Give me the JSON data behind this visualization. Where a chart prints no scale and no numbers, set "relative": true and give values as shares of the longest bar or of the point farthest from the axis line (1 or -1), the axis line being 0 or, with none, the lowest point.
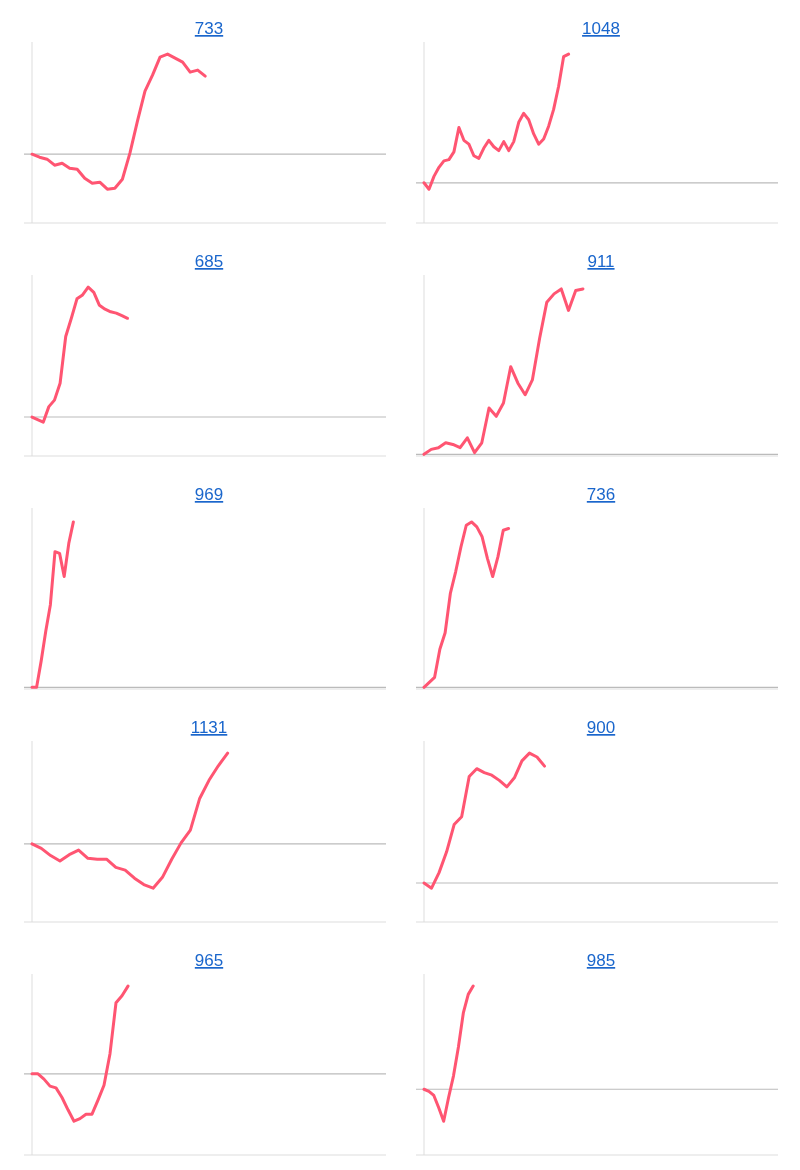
{
  "chart_data": [
    {
      "type": "line",
      "title": "733",
      "relative": true,
      "categories": [
        null,
        null,
        null,
        null,
        null,
        null,
        null,
        null,
        null,
        null,
        null,
        null,
        null,
        null,
        null,
        null,
        null,
        null,
        null,
        null,
        null,
        null,
        null,
        null,
        null,
        null,
        null,
        null,
        null,
        null,
        null,
        null,
        null,
        null,
        null,
        null,
        null,
        null,
        null,
        null,
        null,
        null,
        null,
        null,
        null,
        null,
        null,
        null
      ],
      "series": [
        {
          "color": "#ff5572",
          "values": [
            0,
            -0.03,
            -0.05,
            -0.11,
            -0.09,
            -0.14,
            -0.15,
            -0.24,
            -0.29,
            -0.28,
            -0.35,
            -0.34,
            -0.25,
            0.01,
            0.33,
            0.63,
            0.79,
            0.97,
            1,
            0.96,
            0.92,
            0.82,
            0.84,
            0.78,
            null,
            null,
            null,
            null,
            null,
            null,
            null,
            null,
            null,
            null,
            null,
            null,
            null,
            null,
            null,
            null,
            null,
            null,
            null,
            null,
            null,
            null,
            null,
            null
          ]
        }
      ]
    },
    {
      "type": "line",
      "title": "1048",
      "relative": true,
      "categories": [
        null,
        null,
        null,
        null,
        null,
        null,
        null,
        null,
        null,
        null,
        null,
        null,
        null,
        null,
        null,
        null,
        null,
        null,
        null,
        null,
        null,
        null,
        null,
        null,
        null,
        null,
        null,
        null,
        null,
        null,
        null,
        null,
        null,
        null,
        null,
        null,
        null,
        null,
        null,
        null,
        null,
        null,
        null,
        null,
        null,
        null,
        null,
        null,
        null,
        null,
        null,
        null,
        null,
        null,
        null,
        null,
        null,
        null,
        null,
        null,
        null,
        null,
        null,
        null,
        null,
        null,
        null,
        null,
        null,
        null,
        null,
        null
      ],
      "series": [
        {
          "color": "#ff5572",
          "values": [
            0,
            -0.05,
            0.05,
            0.12,
            0.17,
            0.18,
            0.24,
            0.43,
            0.33,
            0.3,
            0.21,
            0.19,
            0.27,
            0.33,
            0.28,
            0.25,
            0.32,
            0.25,
            0.32,
            0.47,
            0.54,
            0.49,
            0.38,
            0.3,
            0.34,
            0.44,
            0.57,
            0.75,
            0.98,
            1,
            null,
            null,
            null,
            null,
            null,
            null,
            null,
            null,
            null,
            null,
            null,
            null,
            null,
            null,
            null,
            null,
            null,
            null,
            null,
            null,
            null,
            null,
            null,
            null,
            null,
            null,
            null,
            null,
            null,
            null,
            null,
            null,
            null,
            null,
            null,
            null,
            null,
            null,
            null,
            null,
            null,
            null
          ]
        }
      ]
    },
    {
      "type": "line",
      "title": "685",
      "relative": true,
      "categories": [
        null,
        null,
        null,
        null,
        null,
        null,
        null,
        null,
        null,
        null,
        null,
        null,
        null,
        null,
        null,
        null,
        null,
        null,
        null,
        null,
        null,
        null,
        null,
        null,
        null,
        null,
        null,
        null,
        null,
        null,
        null,
        null,
        null,
        null,
        null,
        null,
        null,
        null,
        null,
        null,
        null,
        null,
        null,
        null,
        null,
        null,
        null,
        null,
        null,
        null,
        null,
        null,
        null,
        null,
        null,
        null,
        null,
        null,
        null,
        null,
        null,
        null,
        null,
        null
      ],
      "series": [
        {
          "color": "#ff5572",
          "values": [
            0,
            -0.02,
            -0.04,
            0.08,
            0.13,
            0.26,
            0.62,
            0.76,
            0.91,
            0.94,
            1,
            0.96,
            0.86,
            0.83,
            0.81,
            0.8,
            0.78,
            0.76,
            null,
            null,
            null,
            null,
            null,
            null,
            null,
            null,
            null,
            null,
            null,
            null,
            null,
            null,
            null,
            null,
            null,
            null,
            null,
            null,
            null,
            null,
            null,
            null,
            null,
            null,
            null,
            null,
            null,
            null,
            null,
            null,
            null,
            null,
            null,
            null,
            null,
            null,
            null,
            null,
            null,
            null,
            null,
            null,
            null,
            null
          ]
        }
      ]
    },
    {
      "type": "line",
      "title": "911",
      "relative": true,
      "categories": [
        null,
        null,
        null,
        null,
        null,
        null,
        null,
        null,
        null,
        null,
        null,
        null,
        null,
        null,
        null,
        null,
        null,
        null,
        null,
        null,
        null,
        null,
        null,
        null,
        null,
        null,
        null,
        null,
        null,
        null,
        null,
        null,
        null,
        null,
        null,
        null,
        null,
        null,
        null,
        null,
        null,
        null,
        null,
        null,
        null,
        null,
        null,
        null,
        null,
        null
      ],
      "series": [
        {
          "color": "#ff5572",
          "values": [
            0,
            0.03,
            0.04,
            0.07,
            0.06,
            0.04,
            0.1,
            0.01,
            0.07,
            0.28,
            0.23,
            0.31,
            0.53,
            0.43,
            0.36,
            0.45,
            0.7,
            0.92,
            0.97,
            1,
            0.87,
            0.99,
            1,
            null,
            null,
            null,
            null,
            null,
            null,
            null,
            null,
            null,
            null,
            null,
            null,
            null,
            null,
            null,
            null,
            null,
            null,
            null,
            null,
            null,
            null,
            null,
            null,
            null,
            null,
            null
          ]
        }
      ]
    },
    {
      "type": "line",
      "title": "969",
      "relative": true,
      "categories": [
        null,
        null,
        null,
        null,
        null,
        null,
        null,
        null,
        null,
        null,
        null,
        null,
        null,
        null,
        null,
        null,
        null,
        null,
        null,
        null,
        null,
        null,
        null,
        null,
        null,
        null,
        null,
        null,
        null,
        null,
        null,
        null,
        null,
        null,
        null,
        null,
        null,
        null,
        null,
        null,
        null,
        null,
        null,
        null,
        null,
        null,
        null,
        null,
        null,
        null,
        null,
        null,
        null,
        null,
        null,
        null,
        null,
        null,
        null,
        null,
        null,
        null,
        null,
        null,
        null,
        null,
        null,
        null,
        null,
        null,
        null,
        null,
        null,
        null,
        null,
        null,
        null,
        null
      ],
      "series": [
        {
          "color": "#ff5572",
          "values": [
            0,
            0,
            0.16,
            0.34,
            0.5,
            0.82,
            0.81,
            0.67,
            0.87,
            1,
            null,
            null,
            null,
            null,
            null,
            null,
            null,
            null,
            null,
            null,
            null,
            null,
            null,
            null,
            null,
            null,
            null,
            null,
            null,
            null,
            null,
            null,
            null,
            null,
            null,
            null,
            null,
            null,
            null,
            null,
            null,
            null,
            null,
            null,
            null,
            null,
            null,
            null,
            null,
            null,
            null,
            null,
            null,
            null,
            null,
            null,
            null,
            null,
            null,
            null,
            null,
            null,
            null,
            null,
            null,
            null,
            null,
            null,
            null,
            null,
            null,
            null,
            null,
            null,
            null,
            null,
            null,
            null
          ]
        }
      ]
    },
    {
      "type": "line",
      "title": "736",
      "relative": true,
      "categories": [
        null,
        null,
        null,
        null,
        null,
        null,
        null,
        null,
        null,
        null,
        null,
        null,
        null,
        null,
        null,
        null,
        null,
        null,
        null,
        null,
        null,
        null,
        null,
        null,
        null,
        null,
        null,
        null,
        null,
        null,
        null,
        null,
        null,
        null,
        null,
        null,
        null,
        null,
        null,
        null,
        null,
        null,
        null,
        null,
        null,
        null,
        null,
        null,
        null,
        null,
        null,
        null,
        null,
        null,
        null,
        null,
        null,
        null,
        null,
        null,
        null,
        null,
        null,
        null,
        null,
        null,
        null,
        null
      ],
      "series": [
        {
          "color": "#ff5572",
          "values": [
            0,
            0.03,
            0.06,
            0.23,
            0.33,
            0.57,
            0.7,
            0.85,
            0.98,
            1,
            0.97,
            0.91,
            0.78,
            0.67,
            0.79,
            0.95,
            0.96,
            null,
            null,
            null,
            null,
            null,
            null,
            null,
            null,
            null,
            null,
            null,
            null,
            null,
            null,
            null,
            null,
            null,
            null,
            null,
            null,
            null,
            null,
            null,
            null,
            null,
            null,
            null,
            null,
            null,
            null,
            null,
            null,
            null,
            null,
            null,
            null,
            null,
            null,
            null,
            null,
            null,
            null,
            null,
            null,
            null,
            null,
            null,
            null,
            null,
            null,
            null
          ]
        }
      ]
    },
    {
      "type": "line",
      "title": "1131",
      "relative": true,
      "categories": [
        null,
        null,
        null,
        null,
        null,
        null,
        null,
        null,
        null,
        null,
        null,
        null,
        null,
        null,
        null,
        null,
        null,
        null,
        null,
        null,
        null,
        null,
        null,
        null,
        null,
        null,
        null,
        null,
        null,
        null,
        null,
        null,
        null,
        null,
        null,
        null,
        null,
        null,
        null
      ],
      "series": [
        {
          "color": "#ff5572",
          "values": [
            0,
            -0.05,
            -0.13,
            -0.19,
            -0.12,
            -0.07,
            -0.16,
            -0.17,
            -0.17,
            -0.26,
            -0.29,
            -0.38,
            -0.45,
            -0.49,
            -0.37,
            -0.17,
            0.01,
            0.15,
            0.5,
            0.7,
            0.86,
            1,
            null,
            null,
            null,
            null,
            null,
            null,
            null,
            null,
            null,
            null,
            null,
            null,
            null,
            null,
            null,
            null,
            null
          ]
        }
      ]
    },
    {
      "type": "line",
      "title": "900",
      "relative": true,
      "categories": [
        null,
        null,
        null,
        null,
        null,
        null,
        null,
        null,
        null,
        null,
        null,
        null,
        null,
        null,
        null,
        null,
        null,
        null,
        null,
        null,
        null,
        null,
        null,
        null,
        null,
        null,
        null,
        null,
        null,
        null,
        null,
        null,
        null,
        null,
        null,
        null,
        null,
        null,
        null,
        null,
        null,
        null,
        null,
        null,
        null,
        null,
        null,
        null
      ],
      "series": [
        {
          "color": "#ff5572",
          "values": [
            0,
            -0.04,
            0.08,
            0.24,
            0.45,
            0.51,
            0.82,
            0.88,
            0.85,
            0.83,
            0.79,
            0.74,
            0.81,
            0.94,
            1,
            0.97,
            0.9,
            null,
            null,
            null,
            null,
            null,
            null,
            null,
            null,
            null,
            null,
            null,
            null,
            null,
            null,
            null,
            null,
            null,
            null,
            null,
            null,
            null,
            null,
            null,
            null,
            null,
            null,
            null,
            null,
            null,
            null,
            null
          ]
        }
      ]
    },
    {
      "type": "line",
      "title": "965",
      "relative": true,
      "categories": [
        null,
        null,
        null,
        null,
        null,
        null,
        null,
        null,
        null,
        null,
        null,
        null,
        null,
        null,
        null,
        null,
        null,
        null,
        null,
        null,
        null,
        null,
        null,
        null,
        null,
        null,
        null,
        null,
        null,
        null,
        null,
        null,
        null,
        null,
        null,
        null,
        null,
        null,
        null,
        null,
        null,
        null,
        null,
        null,
        null,
        null,
        null,
        null,
        null,
        null,
        null,
        null,
        null,
        null,
        null,
        null,
        null,
        null,
        null,
        null
      ],
      "series": [
        {
          "color": "#ff5572",
          "values": [
            0,
            0,
            -0.06,
            -0.14,
            -0.16,
            -0.27,
            -0.41,
            -0.54,
            -0.51,
            -0.46,
            -0.46,
            -0.3,
            -0.13,
            0.23,
            0.81,
            0.89,
            1,
            null,
            null,
            null,
            null,
            null,
            null,
            null,
            null,
            null,
            null,
            null,
            null,
            null,
            null,
            null,
            null,
            null,
            null,
            null,
            null,
            null,
            null,
            null,
            null,
            null,
            null,
            null,
            null,
            null,
            null,
            null,
            null,
            null,
            null,
            null,
            null,
            null,
            null,
            null,
            null,
            null,
            null,
            null
          ]
        }
      ]
    },
    {
      "type": "line",
      "title": "985",
      "relative": true,
      "categories": [
        null,
        null,
        null,
        null,
        null,
        null,
        null,
        null,
        null,
        null,
        null,
        null,
        null,
        null,
        null,
        null,
        null,
        null,
        null,
        null,
        null,
        null,
        null,
        null,
        null,
        null,
        null,
        null,
        null,
        null,
        null,
        null,
        null,
        null,
        null,
        null,
        null,
        null,
        null,
        null,
        null,
        null,
        null,
        null,
        null,
        null,
        null,
        null,
        null,
        null,
        null,
        null,
        null,
        null,
        null,
        null,
        null,
        null,
        null,
        null,
        null,
        null,
        null,
        null,
        null,
        null,
        null,
        null,
        null,
        null,
        null,
        null,
        null
      ],
      "series": [
        {
          "color": "#ff5572",
          "values": [
            0,
            -0.02,
            -0.06,
            -0.18,
            -0.31,
            -0.08,
            0.13,
            0.41,
            0.74,
            0.92,
            1,
            null,
            null,
            null,
            null,
            null,
            null,
            null,
            null,
            null,
            null,
            null,
            null,
            null,
            null,
            null,
            null,
            null,
            null,
            null,
            null,
            null,
            null,
            null,
            null,
            null,
            null,
            null,
            null,
            null,
            null,
            null,
            null,
            null,
            null,
            null,
            null,
            null,
            null,
            null,
            null,
            null,
            null,
            null,
            null,
            null,
            null,
            null,
            null,
            null,
            null,
            null,
            null,
            null,
            null,
            null,
            null,
            null,
            null,
            null,
            null,
            null,
            null
          ]
        }
      ]
    }
  ]
}
